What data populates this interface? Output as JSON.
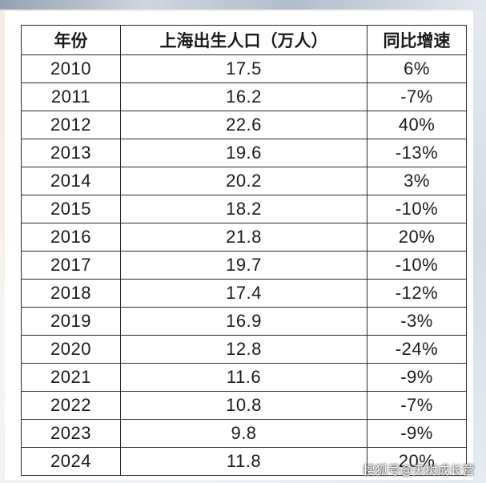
{
  "table": {
    "headers": [
      "年份",
      "上海出生人口（万人）",
      "同比增速"
    ],
    "rows": [
      [
        "2010",
        "17.5",
        "6%"
      ],
      [
        "2011",
        "16.2",
        "-7%"
      ],
      [
        "2012",
        "22.6",
        "40%"
      ],
      [
        "2013",
        "19.6",
        "-13%"
      ],
      [
        "2014",
        "20.2",
        "3%"
      ],
      [
        "2015",
        "18.2",
        "-10%"
      ],
      [
        "2016",
        "21.8",
        "20%"
      ],
      [
        "2017",
        "19.7",
        "-10%"
      ],
      [
        "2018",
        "17.4",
        "-12%"
      ],
      [
        "2019",
        "16.9",
        "-3%"
      ],
      [
        "2020",
        "12.8",
        "-24%"
      ],
      [
        "2021",
        "11.6",
        "-9%"
      ],
      [
        "2022",
        "10.8",
        "-7%"
      ],
      [
        "2023",
        "9.8",
        "-9%"
      ],
      [
        "2024",
        "11.8",
        "20%"
      ]
    ]
  },
  "watermark": "搜狐号@天树成长营"
}
